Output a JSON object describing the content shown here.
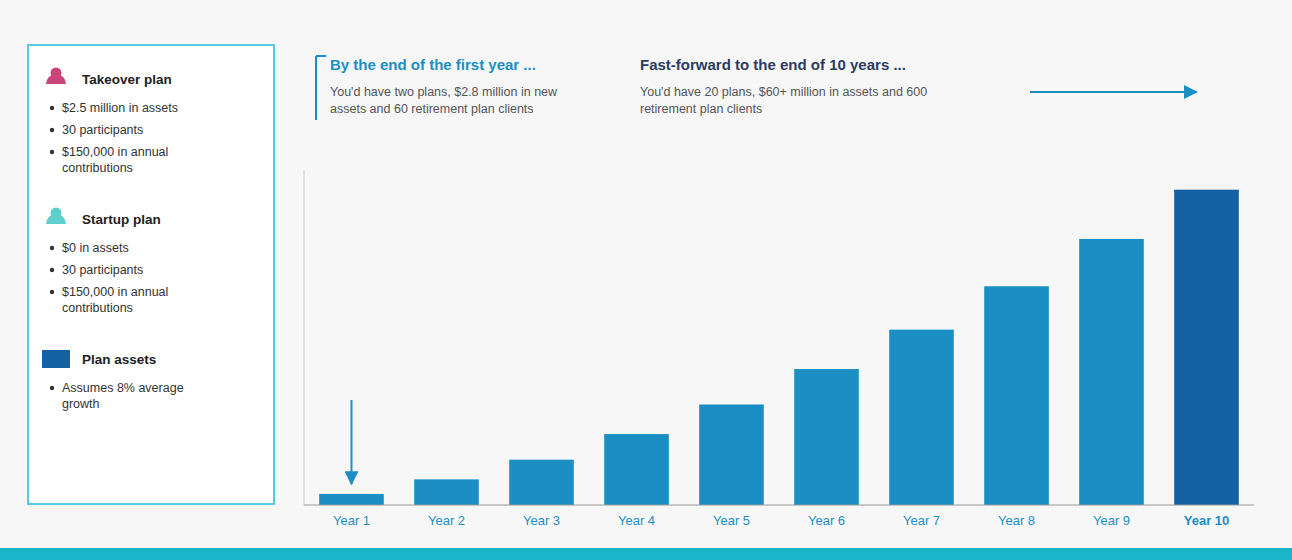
{
  "chart_data": {
    "type": "bar",
    "categories": [
      "Year 1",
      "Year 2",
      "Year 3",
      "Year 4",
      "Year 5",
      "Year 6",
      "Year 7",
      "Year 8",
      "Year 9",
      "Year 10"
    ],
    "values": [
      2.8,
      6.5,
      11.5,
      18.0,
      25.5,
      34.5,
      44.5,
      55.5,
      67.5,
      80.0
    ],
    "colors": [
      "#1b8fc4",
      "#1b8fc4",
      "#1b8fc4",
      "#1b8fc4",
      "#1b8fc4",
      "#1b8fc4",
      "#1b8fc4",
      "#1b8fc4",
      "#1b8fc4",
      "#1460a0"
    ],
    "ylim": [
      0,
      85
    ],
    "tick_labels": "x",
    "annotations": [
      "By the end of the first year ...",
      "You'd have two plans, $2.8 million in new\nassets and 60 retirement plan clients",
      "Fast-forward to the end of 10 years ...",
      "You'd have 20 plans, $60+ million in assets and 600\nretirement plan clients",
      "Takeover plan",
      "$2.5 million in assets",
      "30 participants",
      "$150,000 in annual\ncontributions",
      "Startup plan",
      "$0 in assets",
      "30 participants",
      "$150,000 in annual\ncontributions",
      "Plan assets",
      "Assumes 8% average\ngrowth"
    ]
  }
}
